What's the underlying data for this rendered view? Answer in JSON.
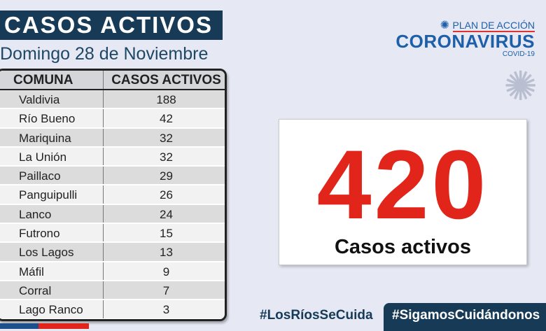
{
  "title": "CASOS ACTIVOS",
  "date": "Domingo 28 de Noviembre",
  "table": {
    "headers": [
      "COMUNA",
      "CASOS ACTIVOS"
    ],
    "rows": [
      [
        "Valdivia",
        "188"
      ],
      [
        "Río Bueno",
        "42"
      ],
      [
        "Mariquina",
        "32"
      ],
      [
        "La Unión",
        "32"
      ],
      [
        "Paillaco",
        "29"
      ],
      [
        "Panguipulli",
        "26"
      ],
      [
        "Lanco",
        "24"
      ],
      [
        "Futrono",
        "15"
      ],
      [
        "Los Lagos",
        "13"
      ],
      [
        "Máfil",
        "9"
      ],
      [
        "Corral",
        "7"
      ],
      [
        "Lago Ranco",
        "3"
      ]
    ]
  },
  "logo": {
    "plan": "PLAN DE ACCIÓN",
    "name": "CORONAVIRUS",
    "sub": "COVID-19"
  },
  "total": {
    "value": "420",
    "label": "Casos activos"
  },
  "hashtags": [
    "#LosRíosSeCuida",
    "#SigamosCuidándonos"
  ],
  "colors": {
    "navy": "#173b57",
    "red": "#e1251b",
    "blue": "#1d5fa8"
  }
}
